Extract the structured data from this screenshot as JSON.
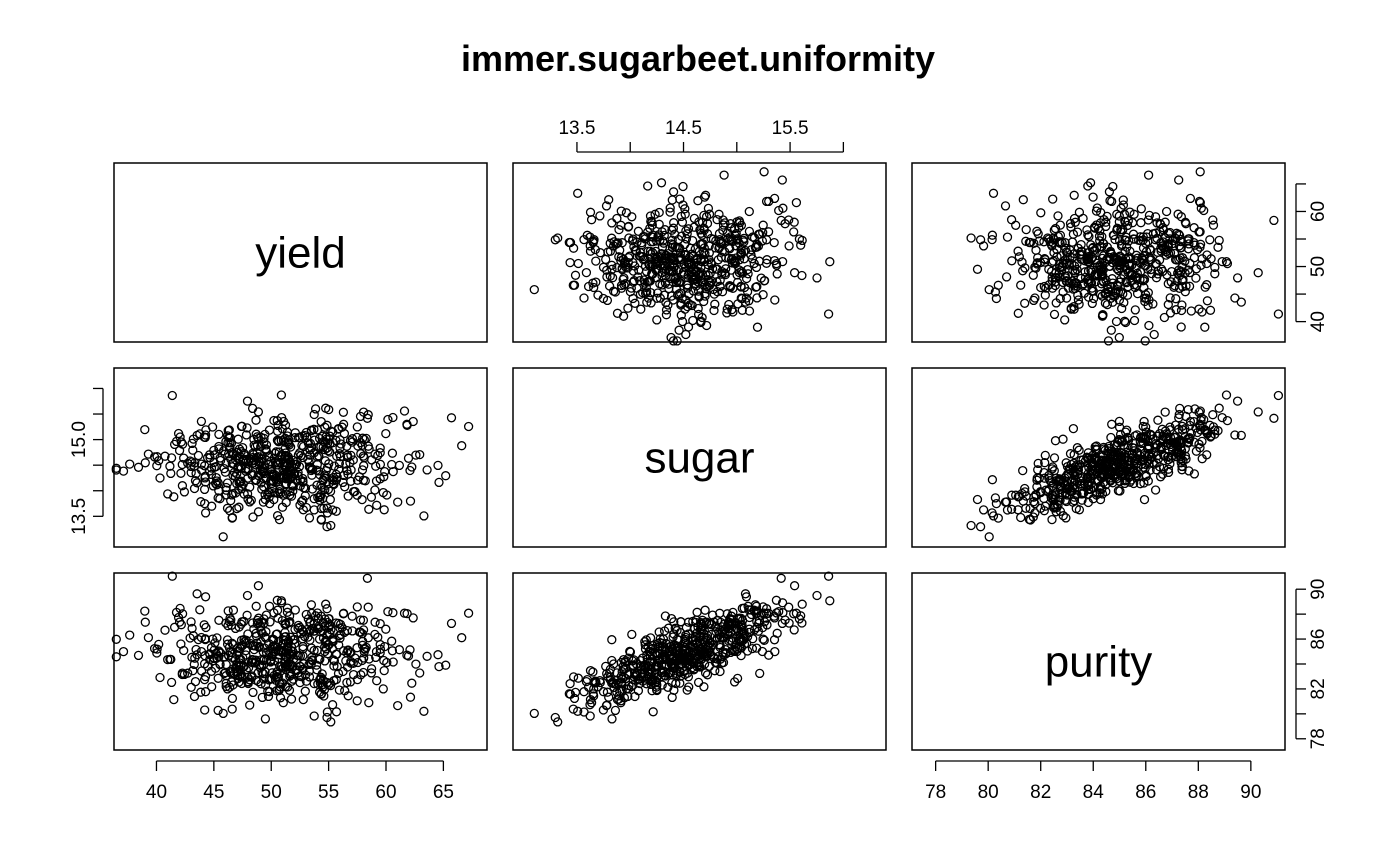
{
  "chart_data": {
    "type": "scatter",
    "subtype": "pairs-matrix",
    "title": "immer.sugarbeet.uniformity",
    "variables": [
      "yield",
      "sugar",
      "purity"
    ],
    "ranges": {
      "yield": [
        36.3,
        68.8
      ],
      "sugar": [
        12.9,
        16.4
      ],
      "purity": [
        77.1,
        91.3
      ]
    },
    "axes": {
      "top": {
        "variable": "sugar",
        "column": 1,
        "ticks": [
          13.5,
          14.5,
          15.5
        ],
        "minor_ticks": [
          14.0,
          15.0,
          16.0
        ]
      },
      "right_row0": {
        "variable": "yield",
        "ticks": [
          40,
          50,
          60
        ],
        "minor_ticks": [
          45,
          55,
          65
        ]
      },
      "left": {
        "variable": "sugar",
        "row": 1,
        "ticks": [
          13.5,
          15.0
        ],
        "minor_ticks": [
          14.0,
          14.5,
          15.5,
          16.0
        ]
      },
      "right_row2": {
        "variable": "purity",
        "ticks": [
          78,
          82,
          86,
          90
        ],
        "minor_ticks": [
          80,
          84,
          88
        ]
      },
      "bottom_col0": {
        "variable": "yield",
        "ticks": [
          40,
          45,
          50,
          55,
          60,
          65
        ]
      },
      "bottom_col2": {
        "variable": "purity",
        "ticks": [
          78,
          80,
          82,
          84,
          86,
          88,
          90
        ]
      }
    },
    "point_count": 600,
    "correlations": {
      "yield_sugar": 0.1,
      "yield_purity": 0.07,
      "sugar_purity": 0.78
    },
    "means": {
      "yield": 51.1,
      "sugar": 14.55,
      "purity": 85.0
    },
    "sds": {
      "yield": 5.4,
      "sugar": 0.5,
      "purity": 2.0
    },
    "grid": false,
    "legend": "none"
  }
}
